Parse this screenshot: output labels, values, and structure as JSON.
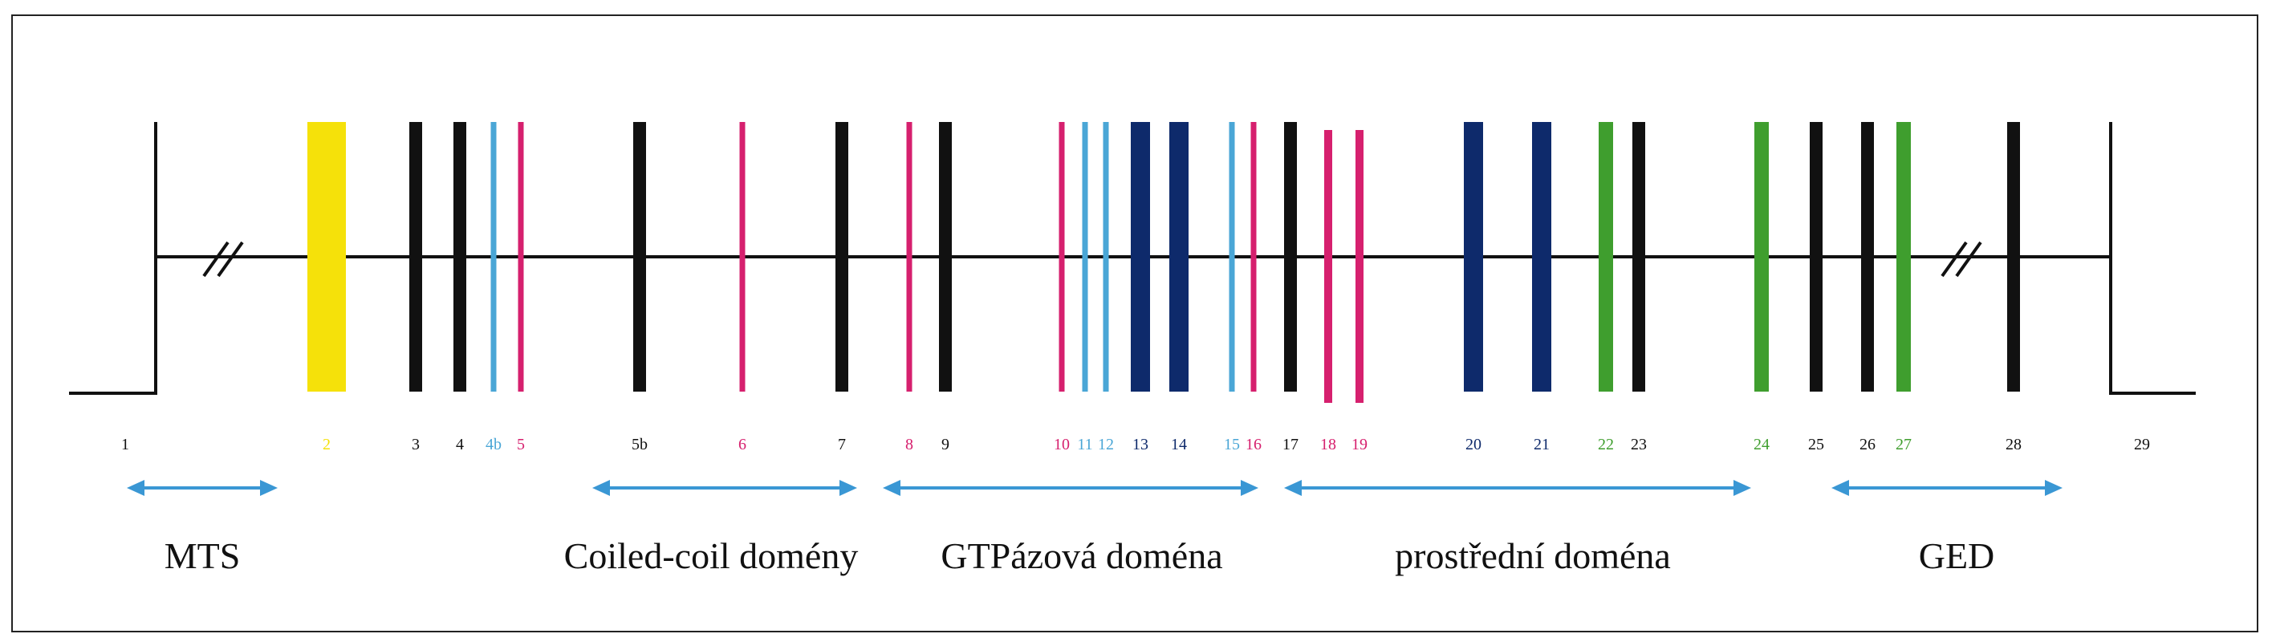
{
  "diagram": {
    "exons": [
      {
        "label": "1",
        "color": "#111111",
        "kind": "boundary"
      },
      {
        "label": "2",
        "color": "#f5e10a",
        "kind": "wide"
      },
      {
        "label": "3",
        "color": "#111111",
        "kind": "medium"
      },
      {
        "label": "4",
        "color": "#111111",
        "kind": "medium"
      },
      {
        "label": "4b",
        "color": "#4aa6d6",
        "kind": "thin"
      },
      {
        "label": "5",
        "color": "#d6206e",
        "kind": "thin"
      },
      {
        "label": "5b",
        "color": "#111111",
        "kind": "medium"
      },
      {
        "label": "6",
        "color": "#d6206e",
        "kind": "thin"
      },
      {
        "label": "7",
        "color": "#111111",
        "kind": "medium"
      },
      {
        "label": "8",
        "color": "#d6206e",
        "kind": "thin"
      },
      {
        "label": "9",
        "color": "#111111",
        "kind": "medium"
      },
      {
        "label": "10",
        "color": "#d6206e",
        "kind": "thin"
      },
      {
        "label": "11",
        "color": "#4aa6d6",
        "kind": "thin"
      },
      {
        "label": "12",
        "color": "#4aa6d6",
        "kind": "thin"
      },
      {
        "label": "13",
        "color": "#0e2a6b",
        "kind": "thick"
      },
      {
        "label": "14",
        "color": "#0e2a6b",
        "kind": "thick"
      },
      {
        "label": "15",
        "color": "#4aa6d6",
        "kind": "thin"
      },
      {
        "label": "16",
        "color": "#d6206e",
        "kind": "thin"
      },
      {
        "label": "17",
        "color": "#111111",
        "kind": "medium"
      },
      {
        "label": "18",
        "color": "#d6206e",
        "kind": "thin-long"
      },
      {
        "label": "19",
        "color": "#d6206e",
        "kind": "thin-long"
      },
      {
        "label": "20",
        "color": "#0e2a6b",
        "kind": "thick"
      },
      {
        "label": "21",
        "color": "#0e2a6b",
        "kind": "thick"
      },
      {
        "label": "22",
        "color": "#3f9e2e",
        "kind": "green"
      },
      {
        "label": "23",
        "color": "#111111",
        "kind": "medium"
      },
      {
        "label": "24",
        "color": "#3f9e2e",
        "kind": "green"
      },
      {
        "label": "25",
        "color": "#111111",
        "kind": "medium"
      },
      {
        "label": "26",
        "color": "#111111",
        "kind": "medium"
      },
      {
        "label": "27",
        "color": "#3f9e2e",
        "kind": "green"
      },
      {
        "label": "28",
        "color": "#111111",
        "kind": "medium"
      },
      {
        "label": "29",
        "color": "#111111",
        "kind": "boundary"
      }
    ],
    "regions": [
      {
        "label": "MTS"
      },
      {
        "label": "Coiled-coil domény"
      },
      {
        "label": "GTPázová doména"
      },
      {
        "label": "prostřední doména"
      },
      {
        "label": "GED"
      }
    ],
    "colors": {
      "line": "#111111",
      "arrow": "#3a97d4"
    }
  }
}
